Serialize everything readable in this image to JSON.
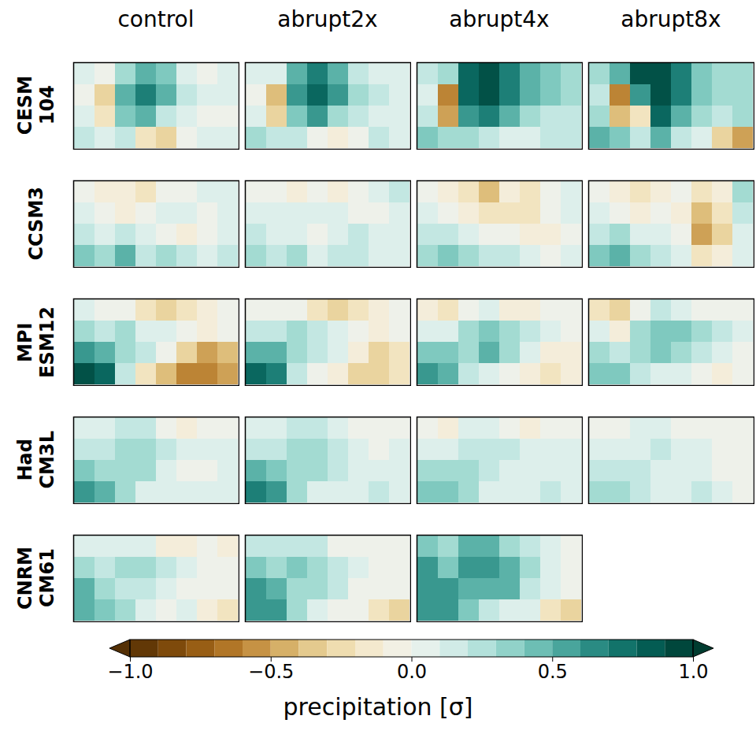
{
  "chart_data": {
    "type": "heatmap",
    "columns": [
      "control",
      "abrupt2x",
      "abrupt4x",
      "abrupt8x"
    ],
    "rows": [
      {
        "name": [
          "CESM",
          "104"
        ],
        "panels": [
          [
            [
              0.1,
              0.0,
              0.3,
              0.5,
              0.4,
              0.1,
              0.0,
              0.1
            ],
            [
              0.0,
              -0.3,
              0.5,
              0.7,
              0.5,
              0.2,
              0.1,
              0.1
            ],
            [
              0.1,
              -0.2,
              0.4,
              0.5,
              0.2,
              0.1,
              0.0,
              0.0
            ],
            [
              0.2,
              0.1,
              0.2,
              -0.2,
              -0.3,
              0.0,
              0.1,
              0.1
            ]
          ],
          [
            [
              0.1,
              0.1,
              0.5,
              0.7,
              0.5,
              0.2,
              0.1,
              0.1
            ],
            [
              0.0,
              -0.4,
              0.6,
              0.8,
              0.6,
              0.3,
              0.2,
              0.1
            ],
            [
              0.1,
              -0.3,
              0.4,
              0.6,
              0.3,
              0.2,
              0.1,
              0.1
            ],
            [
              0.3,
              0.2,
              0.2,
              0.0,
              -0.1,
              0.0,
              0.2,
              0.1
            ]
          ],
          [
            [
              0.2,
              0.3,
              0.8,
              0.9,
              0.7,
              0.5,
              0.4,
              0.3
            ],
            [
              0.1,
              -0.6,
              0.8,
              0.9,
              0.7,
              0.5,
              0.4,
              0.3
            ],
            [
              0.2,
              -0.5,
              0.6,
              0.7,
              0.5,
              0.3,
              0.2,
              0.2
            ],
            [
              0.4,
              0.3,
              0.3,
              0.2,
              0.1,
              0.1,
              0.2,
              0.2
            ]
          ],
          [
            [
              0.3,
              0.5,
              0.9,
              0.9,
              0.7,
              0.4,
              0.3,
              0.3
            ],
            [
              0.2,
              -0.6,
              0.6,
              0.9,
              0.7,
              0.4,
              0.3,
              0.3
            ],
            [
              0.3,
              -0.4,
              -0.2,
              0.8,
              0.5,
              0.3,
              0.2,
              0.3
            ],
            [
              0.5,
              0.4,
              0.2,
              0.5,
              0.2,
              0.1,
              -0.3,
              -0.5
            ]
          ]
        ]
      },
      {
        "name": [
          "CCSM3"
        ],
        "panels": [
          [
            [
              0.0,
              -0.1,
              -0.1,
              -0.2,
              0.0,
              0.0,
              0.1,
              0.1
            ],
            [
              0.1,
              0.0,
              -0.1,
              0.0,
              0.1,
              0.1,
              0.0,
              0.1
            ],
            [
              0.2,
              0.1,
              0.2,
              0.1,
              0.0,
              -0.1,
              0.0,
              0.1
            ],
            [
              0.4,
              0.3,
              0.5,
              0.2,
              0.3,
              0.2,
              0.1,
              0.2
            ]
          ],
          [
            [
              0.0,
              0.0,
              -0.1,
              0.0,
              -0.1,
              0.0,
              0.1,
              0.2
            ],
            [
              0.1,
              0.1,
              0.1,
              0.1,
              0.1,
              0.0,
              0.0,
              0.1
            ],
            [
              0.2,
              0.1,
              0.1,
              0.0,
              0.1,
              0.2,
              0.1,
              0.1
            ],
            [
              0.3,
              0.2,
              0.3,
              0.1,
              0.2,
              0.2,
              0.1,
              0.1
            ]
          ],
          [
            [
              0.0,
              -0.1,
              -0.2,
              -0.4,
              -0.1,
              -0.2,
              0.0,
              0.1
            ],
            [
              0.1,
              0.0,
              -0.1,
              -0.2,
              -0.2,
              -0.2,
              0.0,
              0.1
            ],
            [
              0.2,
              0.2,
              0.1,
              0.0,
              0.0,
              -0.1,
              -0.1,
              0.0
            ],
            [
              0.3,
              0.4,
              0.3,
              0.2,
              0.2,
              0.1,
              0.0,
              0.1
            ]
          ],
          [
            [
              0.0,
              -0.1,
              -0.2,
              -0.1,
              0.0,
              -0.2,
              -0.1,
              0.3
            ],
            [
              0.1,
              0.0,
              -0.1,
              0.0,
              -0.1,
              -0.4,
              -0.2,
              0.2
            ],
            [
              0.2,
              0.3,
              0.1,
              0.1,
              0.0,
              -0.5,
              -0.3,
              0.1
            ],
            [
              0.4,
              0.5,
              0.3,
              0.2,
              0.1,
              -0.2,
              -0.1,
              0.1
            ]
          ]
        ]
      },
      {
        "name": [
          "MPI",
          "ESM12"
        ],
        "panels": [
          [
            [
              0.1,
              0.0,
              0.0,
              -0.2,
              -0.3,
              -0.2,
              -0.1,
              0.0
            ],
            [
              0.3,
              0.2,
              0.3,
              0.1,
              0.1,
              0.0,
              -0.1,
              0.0
            ],
            [
              0.6,
              0.5,
              0.3,
              0.2,
              0.0,
              -0.3,
              -0.5,
              -0.4
            ],
            [
              0.9,
              0.8,
              0.2,
              -0.2,
              -0.4,
              -0.6,
              -0.6,
              -0.5
            ]
          ],
          [
            [
              0.0,
              0.0,
              0.0,
              -0.2,
              -0.3,
              -0.2,
              -0.1,
              0.0
            ],
            [
              0.2,
              0.2,
              0.3,
              0.2,
              0.1,
              0.0,
              -0.1,
              0.0
            ],
            [
              0.5,
              0.5,
              0.3,
              0.2,
              0.1,
              -0.1,
              -0.3,
              -0.2
            ],
            [
              0.8,
              0.7,
              0.2,
              0.0,
              -0.1,
              -0.3,
              -0.3,
              -0.2
            ]
          ],
          [
            [
              -0.1,
              -0.2,
              0.0,
              0.1,
              -0.1,
              -0.1,
              0.0,
              0.0
            ],
            [
              0.1,
              0.1,
              0.3,
              0.4,
              0.3,
              0.2,
              0.1,
              0.0
            ],
            [
              0.4,
              0.4,
              0.3,
              0.5,
              0.3,
              0.1,
              -0.1,
              -0.1
            ],
            [
              0.6,
              0.5,
              0.2,
              0.1,
              0.0,
              -0.1,
              -0.2,
              -0.1
            ]
          ],
          [
            [
              -0.2,
              -0.3,
              0.0,
              0.2,
              0.1,
              0.0,
              0.0,
              0.0
            ],
            [
              0.1,
              -0.1,
              0.3,
              0.4,
              0.4,
              0.3,
              0.2,
              0.1
            ],
            [
              0.3,
              0.2,
              0.3,
              0.4,
              0.3,
              0.2,
              0.1,
              0.0
            ],
            [
              0.4,
              0.4,
              0.2,
              0.1,
              0.1,
              0.0,
              -0.1,
              0.0
            ]
          ]
        ]
      },
      {
        "name": [
          "Had",
          "CM3L"
        ],
        "panels": [
          [
            [
              0.1,
              0.1,
              0.2,
              0.2,
              0.0,
              -0.1,
              0.0,
              0.0
            ],
            [
              0.2,
              0.2,
              0.3,
              0.3,
              0.2,
              0.1,
              0.1,
              0.1
            ],
            [
              0.4,
              0.3,
              0.3,
              0.3,
              0.1,
              0.0,
              0.0,
              0.1
            ],
            [
              0.6,
              0.5,
              0.3,
              0.1,
              0.1,
              0.1,
              0.1,
              0.1
            ]
          ],
          [
            [
              0.1,
              0.1,
              0.2,
              0.2,
              0.1,
              0.0,
              0.0,
              0.0
            ],
            [
              0.2,
              0.2,
              0.3,
              0.3,
              0.2,
              0.1,
              0.0,
              0.1
            ],
            [
              0.5,
              0.4,
              0.3,
              0.3,
              0.2,
              0.1,
              0.1,
              0.1
            ],
            [
              0.7,
              0.6,
              0.3,
              0.1,
              0.1,
              0.1,
              0.2,
              0.1
            ]
          ],
          [
            [
              0.0,
              -0.1,
              0.1,
              0.1,
              0.0,
              -0.1,
              0.0,
              0.0
            ],
            [
              0.1,
              0.1,
              0.2,
              0.2,
              0.2,
              0.1,
              0.1,
              0.1
            ],
            [
              0.3,
              0.3,
              0.3,
              0.2,
              0.1,
              0.1,
              0.1,
              0.1
            ],
            [
              0.4,
              0.4,
              0.3,
              0.1,
              0.1,
              0.1,
              0.2,
              0.1
            ]
          ],
          [
            [
              0.0,
              0.0,
              0.1,
              0.1,
              0.0,
              0.0,
              0.0,
              0.0
            ],
            [
              0.1,
              0.1,
              0.1,
              0.2,
              0.1,
              0.1,
              0.0,
              0.0
            ],
            [
              0.2,
              0.2,
              0.2,
              0.1,
              0.1,
              0.1,
              0.0,
              0.0
            ],
            [
              0.3,
              0.3,
              0.2,
              0.1,
              0.1,
              0.2,
              0.1,
              0.0
            ]
          ]
        ]
      },
      {
        "name": [
          "CNRM",
          "CM61"
        ],
        "panels": [
          [
            [
              0.1,
              0.1,
              0.1,
              0.1,
              -0.1,
              -0.1,
              0.0,
              -0.1
            ],
            [
              0.3,
              0.2,
              0.3,
              0.3,
              0.2,
              0.1,
              0.0,
              0.0
            ],
            [
              0.5,
              0.3,
              0.2,
              0.2,
              0.1,
              0.0,
              0.0,
              0.0
            ],
            [
              0.5,
              0.4,
              0.3,
              0.1,
              0.0,
              0.1,
              -0.1,
              -0.2
            ]
          ],
          [
            [
              0.2,
              0.2,
              0.2,
              0.2,
              0.0,
              0.0,
              0.0,
              0.0
            ],
            [
              0.4,
              0.3,
              0.4,
              0.3,
              0.2,
              0.1,
              0.0,
              0.0
            ],
            [
              0.6,
              0.5,
              0.3,
              0.3,
              0.2,
              0.0,
              0.0,
              0.0
            ],
            [
              0.6,
              0.6,
              0.3,
              0.1,
              0.0,
              0.0,
              -0.2,
              -0.3
            ]
          ],
          [
            [
              0.4,
              0.3,
              0.5,
              0.5,
              0.3,
              0.2,
              0.1,
              0.0
            ],
            [
              0.6,
              0.4,
              0.6,
              0.6,
              0.5,
              0.3,
              0.1,
              0.0
            ],
            [
              0.6,
              0.6,
              0.5,
              0.5,
              0.5,
              0.2,
              0.1,
              0.0
            ],
            [
              0.6,
              0.6,
              0.4,
              0.2,
              0.1,
              0.1,
              -0.2,
              -0.3
            ]
          ],
          null
        ]
      }
    ],
    "colorbar": {
      "label": "precipitation [σ]",
      "range": [
        -1,
        1
      ],
      "ticks": [
        {
          "value": -1,
          "label": "−1.0"
        },
        {
          "value": -0.5,
          "label": "−0.5"
        },
        {
          "value": 0,
          "label": "0.0"
        },
        {
          "value": 0.5,
          "label": "0.5"
        },
        {
          "value": 1,
          "label": "1.0"
        }
      ]
    }
  }
}
